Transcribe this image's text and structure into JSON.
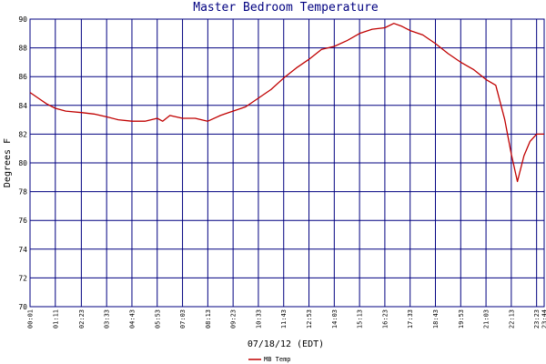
{
  "chart_data": {
    "type": "line",
    "title": "Master Bedroom Temperature",
    "xlabel": "07/18/12 (EDT)",
    "ylabel": "Degrees F",
    "ylim": [
      70,
      90
    ],
    "yticks": [
      70,
      72,
      74,
      76,
      78,
      80,
      82,
      84,
      86,
      88,
      90
    ],
    "xticks": [
      "00:01",
      "01:11",
      "02:23",
      "03:33",
      "04:43",
      "05:53",
      "07:03",
      "08:13",
      "09:23",
      "10:33",
      "11:43",
      "12:53",
      "14:03",
      "15:13",
      "16:23",
      "17:33",
      "18:43",
      "19:53",
      "21:03",
      "22:13",
      "23:23",
      "23:44"
    ],
    "grid": true,
    "legend": {
      "placement": "bottom-left"
    },
    "colors": {
      "series": "#c00000",
      "grid": "#000080",
      "title": "#000080"
    },
    "series": [
      {
        "name": "MB Temp",
        "x": [
          "00:01",
          "00:24",
          "00:47",
          "01:11",
          "01:40",
          "02:23",
          "02:58",
          "03:33",
          "04:05",
          "04:43",
          "05:19",
          "05:53",
          "06:08",
          "06:28",
          "07:03",
          "07:38",
          "08:13",
          "08:48",
          "09:23",
          "09:58",
          "10:33",
          "11:08",
          "11:43",
          "12:18",
          "12:53",
          "13:28",
          "14:03",
          "14:38",
          "15:13",
          "15:48",
          "16:23",
          "16:48",
          "17:10",
          "17:33",
          "18:08",
          "18:43",
          "19:18",
          "19:53",
          "20:28",
          "21:03",
          "21:30",
          "21:55",
          "22:13",
          "22:30",
          "22:48",
          "23:05",
          "23:23",
          "23:44"
        ],
        "y": [
          84.9,
          84.5,
          84.1,
          83.8,
          83.6,
          83.5,
          83.4,
          83.2,
          83.0,
          82.9,
          82.9,
          83.1,
          82.9,
          83.3,
          83.1,
          83.1,
          82.9,
          83.3,
          83.6,
          83.9,
          84.5,
          85.1,
          85.9,
          86.6,
          87.2,
          87.9,
          88.1,
          88.5,
          89.0,
          89.3,
          89.4,
          89.7,
          89.5,
          89.2,
          88.9,
          88.3,
          87.6,
          87.0,
          86.5,
          85.8,
          85.4,
          83.0,
          80.6,
          78.7,
          80.5,
          81.5,
          82.0,
          82.0
        ]
      }
    ]
  }
}
